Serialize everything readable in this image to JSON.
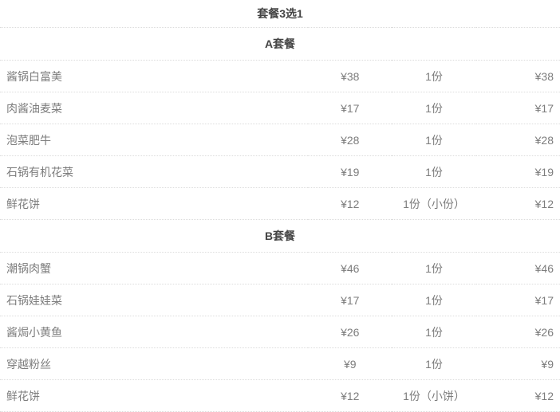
{
  "page": {
    "title": "套餐3选1"
  },
  "colors": {
    "header_text": "#444444",
    "body_text": "#7d7d7d",
    "divider": "#dcdcdc",
    "background": "#ffffff"
  },
  "sections": [
    {
      "header": "A套餐",
      "rows": [
        {
          "name": "酱锅白富美",
          "price": "¥38",
          "qty": "1份",
          "total": "¥38"
        },
        {
          "name": "肉酱油麦菜",
          "price": "¥17",
          "qty": "1份",
          "total": "¥17"
        },
        {
          "name": "泡菜肥牛",
          "price": "¥28",
          "qty": "1份",
          "total": "¥28"
        },
        {
          "name": "石锅有机花菜",
          "price": "¥19",
          "qty": "1份",
          "total": "¥19"
        },
        {
          "name": "鲜花饼",
          "price": "¥12",
          "qty": "1份（小份）",
          "total": "¥12"
        }
      ]
    },
    {
      "header": "B套餐",
      "rows": [
        {
          "name": "潮锅肉蟹",
          "price": "¥46",
          "qty": "1份",
          "total": "¥46"
        },
        {
          "name": "石锅娃娃菜",
          "price": "¥17",
          "qty": "1份",
          "total": "¥17"
        },
        {
          "name": "酱焗小黄鱼",
          "price": "¥26",
          "qty": "1份",
          "total": "¥26"
        },
        {
          "name": "穿越粉丝",
          "price": "¥9",
          "qty": "1份",
          "total": "¥9"
        },
        {
          "name": "鲜花饼",
          "price": "¥12",
          "qty": "1份（小饼）",
          "total": "¥12"
        }
      ]
    }
  ]
}
